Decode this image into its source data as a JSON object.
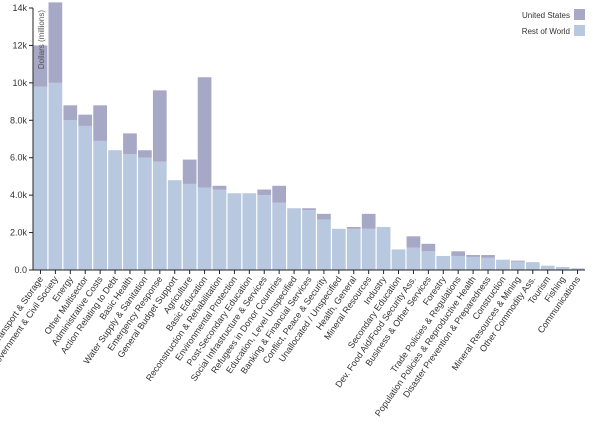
{
  "chart_data": {
    "type": "bar",
    "stacked": true,
    "title": "",
    "xlabel": "",
    "ylabel": "Dollars (millions)",
    "ylim": [
      0,
      14000
    ],
    "yticks": [
      0,
      2000,
      4000,
      6000,
      8000,
      10000,
      12000,
      14000
    ],
    "ytick_labels": [
      "0.0",
      "2.0k",
      "4.0k",
      "6.0k",
      "8.0k",
      "10k",
      "12k",
      "14k"
    ],
    "grid": false,
    "legend_position": "top-right",
    "categories": [
      "Transport & Storage",
      "Government & Civil Society",
      "Energy",
      "Other Multisector",
      "Administrative Costs",
      "Action Relating to Debt",
      "Basic Health",
      "Water Supply & Sanitation",
      "Emergency Response",
      "General Budget Support",
      "Agriculture",
      "Basic Education",
      "Reconstruction & Rehabilitation",
      "Environmental Protection",
      "Post-Secondary Education",
      "Social Infrastructure & Services",
      "Refugees in Donor Countries",
      "Education, Level Unspecified",
      "Banking & Financial Services",
      "Conflict, Peace & Security",
      "Unallocated / Unspecified",
      "Health, General",
      "Mineral Resources",
      "Industry",
      "Secondary Education",
      "Dev. Food Aid/Food Security Ass.",
      "Business & Other Services",
      "Forestry",
      "Trade Policies & Regulations",
      "Population Policies & Reproductive Health",
      "Disaster Prevention & Preparedness",
      "Construction",
      "Mineral Resources & Mining",
      "Other Commodity Ass.",
      "Tourism",
      "Fishing",
      "Communications"
    ],
    "display_categories": [
      "Transport & Storage",
      "Government & Civil Society",
      "Energy",
      "Other Multisector",
      "Administrative Costs",
      "Action Relating to Debt",
      "Basic Health",
      "Water Supply & Sanitation",
      "Emergency Response",
      "General Budget Support",
      "Agriculture",
      "Basic Education",
      "Reconstruction & Rehabilitation",
      "Environmental Protection",
      "Post-Secondary Education",
      "Social Infrastructure & Services",
      "Refugees in Donor Countries",
      "Education, Level Unspecified",
      "Banking & Financial Services",
      "Conflict, Peace & Security",
      "Unallocated / Unspecified",
      "Health, General",
      "Mineral Resources",
      "Industry",
      "Secondary Education",
      "Dev. Food Aid/Food Security Ass.",
      "Business & Other Services",
      "Forestry",
      "Trade Policies & Regulations",
      "Population Policies & Reproductive Health",
      "Disaster Prevention & Preparedness",
      "Construction",
      "Mineral Resources & Mining",
      "Other Commodity Ass.",
      "Tourism",
      "Fishing",
      "Communications"
    ],
    "series": [
      {
        "name": "Rest of World",
        "color": "#b8c8de",
        "values": [
          9800,
          10000,
          8000,
          7700,
          6900,
          6400,
          6200,
          6000,
          5800,
          4800,
          4600,
          4400,
          4300,
          4100,
          4100,
          4000,
          3600,
          3300,
          3200,
          2700,
          2200,
          2200,
          2200,
          2300,
          1100,
          1200,
          1000,
          750,
          750,
          700,
          650,
          550,
          450,
          420,
          230,
          160,
          90
        ]
      },
      {
        "name": "United States",
        "color": "#a7a7c6",
        "values": [
          2200,
          4300,
          800,
          600,
          1900,
          0,
          1100,
          400,
          3800,
          0,
          1300,
          5900,
          200,
          0,
          0,
          300,
          900,
          0,
          100,
          300,
          0,
          100,
          800,
          0,
          0,
          600,
          400,
          0,
          250,
          100,
          150,
          0,
          50,
          0,
          0,
          0,
          0
        ]
      }
    ]
  }
}
